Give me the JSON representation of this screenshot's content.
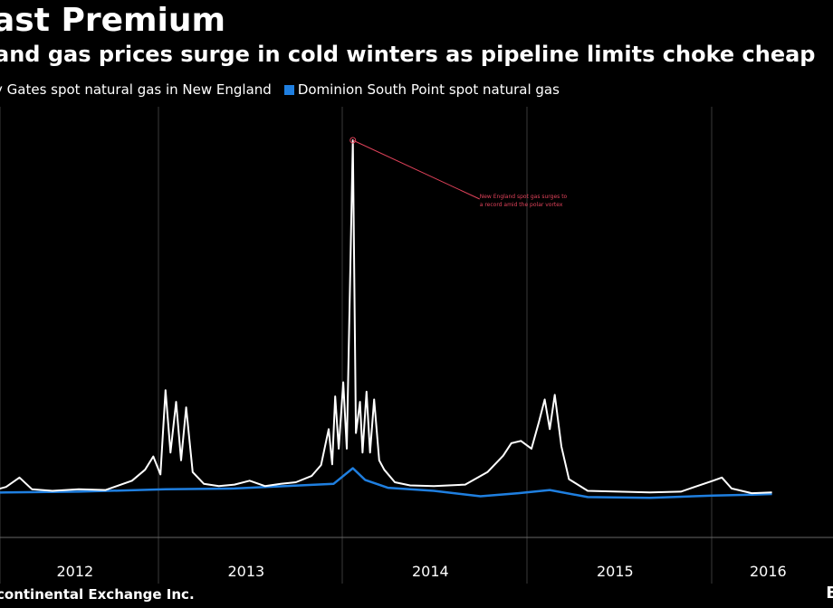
{
  "title": "ast Premium",
  "subtitle": "and gas prices surge in cold winters as pipeline limits choke cheap",
  "legend": [
    {
      "label": "y Gates spot natural gas in New England",
      "color": "#ffffff"
    },
    {
      "label": "Dominion South Point spot natural gas",
      "color": "#1f7fe0"
    }
  ],
  "source": "continental Exchange Inc.",
  "brand": "B",
  "chart_data": {
    "type": "line",
    "x_tick_labels": [
      "2012",
      "2013",
      "2014",
      "2015",
      "2016"
    ],
    "annotation": {
      "lines": [
        "New England spot gas surges to",
        "a record amid the polar vortex"
      ],
      "date": "2014-01-22"
    },
    "grid": "vertical year separators",
    "series": [
      {
        "name": "y Gates spot natural gas in New England",
        "color": "#ffffff",
        "points": [
          [
            "2011-08-01",
            0.9
          ],
          [
            "2011-10-01",
            1.0
          ],
          [
            "2011-12-01",
            1.1
          ],
          [
            "2012-01-15",
            1.6
          ],
          [
            "2012-02-15",
            2.8
          ],
          [
            "2012-03-15",
            1.3
          ],
          [
            "2012-05-01",
            1.1
          ],
          [
            "2012-07-01",
            1.3
          ],
          [
            "2012-09-01",
            1.2
          ],
          [
            "2012-11-01",
            2.4
          ],
          [
            "2012-12-01",
            3.8
          ],
          [
            "2012-12-20",
            5.5
          ],
          [
            "2013-01-05",
            3.2
          ],
          [
            "2013-01-15",
            14.0
          ],
          [
            "2013-01-25",
            6.0
          ],
          [
            "2013-02-05",
            12.5
          ],
          [
            "2013-02-15",
            5.0
          ],
          [
            "2013-02-25",
            11.8
          ],
          [
            "2013-03-10",
            3.5
          ],
          [
            "2013-04-01",
            2.0
          ],
          [
            "2013-05-01",
            1.7
          ],
          [
            "2013-06-01",
            1.9
          ],
          [
            "2013-07-01",
            2.4
          ],
          [
            "2013-08-01",
            1.7
          ],
          [
            "2013-09-01",
            2.0
          ],
          [
            "2013-10-01",
            2.2
          ],
          [
            "2013-11-01",
            3.0
          ],
          [
            "2013-11-20",
            4.4
          ],
          [
            "2013-12-05",
            9.0
          ],
          [
            "2013-12-12",
            4.5
          ],
          [
            "2013-12-18",
            13.2
          ],
          [
            "2013-12-25",
            6.5
          ],
          [
            "2014-01-03",
            15.0
          ],
          [
            "2014-01-10",
            6.5
          ],
          [
            "2014-01-22",
            46.0
          ],
          [
            "2014-01-28",
            8.5
          ],
          [
            "2014-02-05",
            12.5
          ],
          [
            "2014-02-10",
            6.0
          ],
          [
            "2014-02-18",
            13.8
          ],
          [
            "2014-02-25",
            6.0
          ],
          [
            "2014-03-05",
            12.8
          ],
          [
            "2014-03-15",
            5.0
          ],
          [
            "2014-03-25",
            3.8
          ],
          [
            "2014-04-15",
            2.2
          ],
          [
            "2014-05-15",
            1.8
          ],
          [
            "2014-07-01",
            1.7
          ],
          [
            "2014-09-01",
            1.9
          ],
          [
            "2014-10-15",
            3.5
          ],
          [
            "2014-11-15",
            5.6
          ],
          [
            "2014-12-01",
            7.2
          ],
          [
            "2014-12-20",
            7.5
          ],
          [
            "2015-01-10",
            6.5
          ],
          [
            "2015-01-25",
            10.0
          ],
          [
            "2015-02-05",
            12.8
          ],
          [
            "2015-02-15",
            9.0
          ],
          [
            "2015-02-25",
            13.4
          ],
          [
            "2015-03-10",
            6.8
          ],
          [
            "2015-03-25",
            2.6
          ],
          [
            "2015-05-01",
            1.1
          ],
          [
            "2015-07-01",
            1.0
          ],
          [
            "2015-09-01",
            0.9
          ],
          [
            "2015-11-01",
            1.0
          ],
          [
            "2016-01-05",
            2.4
          ],
          [
            "2016-02-01",
            2.8
          ],
          [
            "2016-03-01",
            1.4
          ],
          [
            "2016-05-01",
            0.8
          ],
          [
            "2016-07-01",
            0.9
          ]
        ]
      },
      {
        "name": "Dominion South Point spot natural gas",
        "color": "#1f7fe0",
        "points": [
          [
            "2011-08-01",
            0.8
          ],
          [
            "2012-01-15",
            0.9
          ],
          [
            "2012-07-01",
            1.0
          ],
          [
            "2013-01-15",
            1.3
          ],
          [
            "2013-06-01",
            1.4
          ],
          [
            "2013-12-15",
            2.0
          ],
          [
            "2014-01-22",
            4.0
          ],
          [
            "2014-02-15",
            2.5
          ],
          [
            "2014-04-01",
            1.5
          ],
          [
            "2014-07-01",
            1.1
          ],
          [
            "2014-10-01",
            0.4
          ],
          [
            "2014-12-15",
            0.8
          ],
          [
            "2015-02-15",
            1.2
          ],
          [
            "2015-05-01",
            0.3
          ],
          [
            "2015-09-01",
            0.2
          ],
          [
            "2016-01-05",
            0.5
          ],
          [
            "2016-05-01",
            0.6
          ],
          [
            "2016-07-01",
            0.7
          ]
        ]
      }
    ]
  }
}
